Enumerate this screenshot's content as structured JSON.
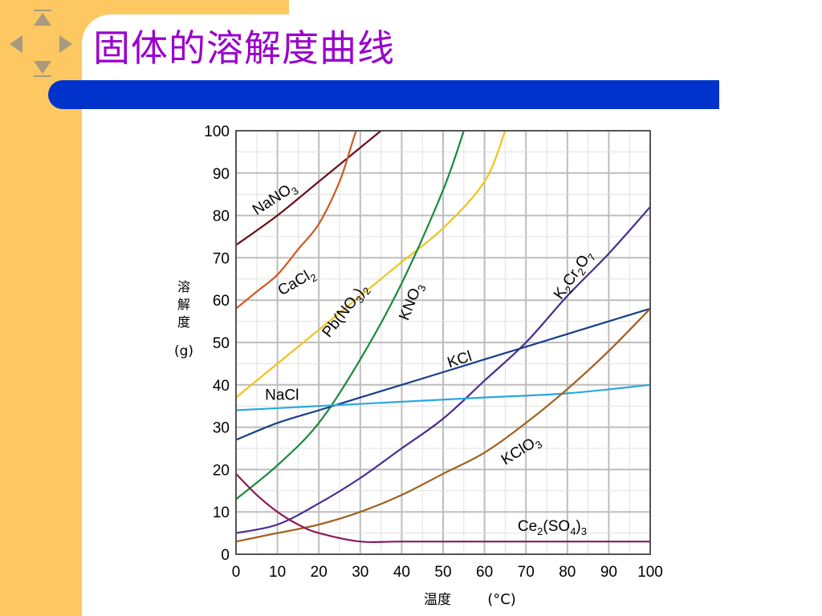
{
  "slide": {
    "title": "固体的溶解度曲线",
    "nav_icons": [
      "nav-up-icon",
      "nav-down-icon",
      "nav-left-icon",
      "nav-right-icon"
    ],
    "colors": {
      "sidebar": "#fdc862",
      "title": "#9900cc",
      "band": "#0033cc"
    }
  },
  "chart_data": {
    "type": "line",
    "title": "",
    "xlabel": "温度",
    "xlabel_unit": "(°C)",
    "ylabel_lines": [
      "溶",
      "解",
      "度",
      "(g)"
    ],
    "xlim": [
      0,
      100
    ],
    "ylim": [
      0,
      100
    ],
    "grid": true,
    "x_ticks": [
      0,
      10,
      20,
      30,
      40,
      50,
      60,
      70,
      80,
      90,
      100
    ],
    "y_ticks": [
      0,
      10,
      20,
      30,
      40,
      50,
      60,
      70,
      80,
      90,
      100
    ],
    "series": [
      {
        "name": "NaNO3",
        "label_parts": [
          [
            "Na",
            ""
          ],
          [
            "NO",
            ""
          ],
          [
            "3",
            "sub"
          ]
        ],
        "color": "#6b0f1a",
        "points": [
          [
            0,
            73
          ],
          [
            10,
            80
          ],
          [
            20,
            88
          ],
          [
            30,
            96
          ],
          [
            35,
            100
          ]
        ]
      },
      {
        "name": "CaCl2",
        "label_parts": [
          [
            "CaCl",
            ""
          ],
          [
            "2",
            "sub"
          ]
        ],
        "color": "#cc5a1e",
        "points": [
          [
            0,
            58
          ],
          [
            5,
            62
          ],
          [
            10,
            66
          ],
          [
            15,
            72
          ],
          [
            20,
            78
          ],
          [
            25,
            88
          ],
          [
            28,
            97
          ],
          [
            29,
            100
          ]
        ]
      },
      {
        "name": "Pb(NO3)2",
        "label_parts": [
          [
            "Pb(NO",
            ""
          ],
          [
            "3",
            "sub"
          ],
          [
            ")",
            ""
          ],
          [
            "2",
            "sub"
          ]
        ],
        "color": "#f0c419",
        "points": [
          [
            0,
            37
          ],
          [
            10,
            45
          ],
          [
            20,
            53
          ],
          [
            30,
            61
          ],
          [
            40,
            69
          ],
          [
            50,
            77
          ],
          [
            60,
            88
          ],
          [
            65,
            100
          ]
        ]
      },
      {
        "name": "KNO3",
        "label_parts": [
          [
            "KNO",
            ""
          ],
          [
            "3",
            "sub"
          ]
        ],
        "color": "#1a8a3c",
        "points": [
          [
            0,
            13
          ],
          [
            10,
            21
          ],
          [
            20,
            31
          ],
          [
            30,
            46
          ],
          [
            40,
            64
          ],
          [
            50,
            86
          ],
          [
            55,
            100
          ]
        ]
      },
      {
        "name": "K2Cr2O7",
        "label_parts": [
          [
            "K",
            ""
          ],
          [
            "2",
            "sub"
          ],
          [
            "Cr",
            ""
          ],
          [
            "2",
            "sub"
          ],
          [
            "O",
            ""
          ],
          [
            "7",
            "sub"
          ]
        ],
        "color": "#4b2c8f",
        "points": [
          [
            0,
            5
          ],
          [
            10,
            7
          ],
          [
            20,
            12
          ],
          [
            30,
            18
          ],
          [
            40,
            25
          ],
          [
            50,
            32
          ],
          [
            60,
            41
          ],
          [
            70,
            50
          ],
          [
            80,
            61
          ],
          [
            90,
            71
          ],
          [
            100,
            82
          ]
        ]
      },
      {
        "name": "KCl",
        "label_parts": [
          [
            "KCl",
            ""
          ]
        ],
        "color": "#173f8a",
        "points": [
          [
            0,
            27
          ],
          [
            10,
            31
          ],
          [
            20,
            34
          ],
          [
            30,
            37
          ],
          [
            40,
            40
          ],
          [
            50,
            43
          ],
          [
            60,
            46
          ],
          [
            70,
            49
          ],
          [
            80,
            52
          ],
          [
            90,
            55
          ],
          [
            100,
            58
          ]
        ]
      },
      {
        "name": "NaCl",
        "label_parts": [
          [
            "NaCl",
            ""
          ]
        ],
        "color": "#2aa7e0",
        "points": [
          [
            0,
            34
          ],
          [
            20,
            35
          ],
          [
            40,
            36
          ],
          [
            60,
            37
          ],
          [
            80,
            38
          ],
          [
            100,
            40
          ]
        ]
      },
      {
        "name": "KClO3",
        "label_parts": [
          [
            "KClO",
            ""
          ],
          [
            "3",
            "sub"
          ]
        ],
        "color": "#a0601c",
        "points": [
          [
            0,
            3
          ],
          [
            10,
            5
          ],
          [
            20,
            7
          ],
          [
            30,
            10
          ],
          [
            40,
            14
          ],
          [
            50,
            19
          ],
          [
            60,
            24
          ],
          [
            70,
            31
          ],
          [
            80,
            39
          ],
          [
            90,
            48
          ],
          [
            100,
            58
          ]
        ]
      },
      {
        "name": "Ce2(SO4)3",
        "label_parts": [
          [
            "Ce",
            ""
          ],
          [
            "2",
            "sub"
          ],
          [
            "(SO",
            ""
          ],
          [
            "4",
            "sub"
          ],
          [
            ")",
            ""
          ],
          [
            "3",
            "sub"
          ]
        ],
        "color": "#8b1a5a",
        "points": [
          [
            0,
            19
          ],
          [
            5,
            14
          ],
          [
            10,
            10
          ],
          [
            15,
            7
          ],
          [
            20,
            5
          ],
          [
            30,
            3
          ],
          [
            40,
            3
          ],
          [
            60,
            3
          ],
          [
            80,
            3
          ],
          [
            100,
            3
          ]
        ]
      }
    ]
  }
}
